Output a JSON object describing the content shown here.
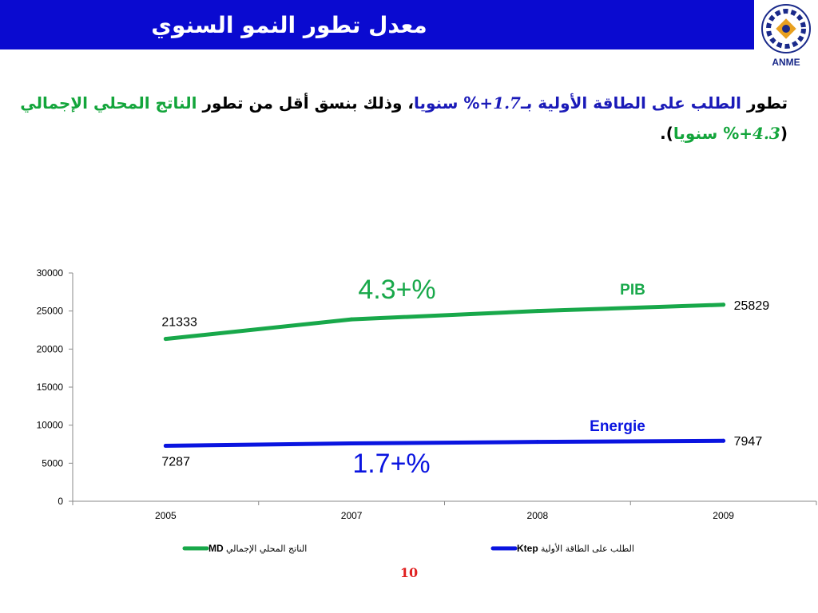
{
  "slide": {
    "title": "معدل تطور النمو السنوي",
    "logo_text": "ANME",
    "logo_arc_text": "الوكالة الوطنية للتحكم في الطاقة",
    "page_number": "10"
  },
  "description": {
    "p1": "تطور ",
    "p2": "الطلب على الطاقة الأولية بـ",
    "p3": "+1.7",
    "p4": "% سنويا",
    "p5": "، وذلك بنسق أقل من تطور ",
    "p6": "الناتج المحلي الإجمالي ",
    "p7": "(",
    "p8": "+4.3",
    "p9": "% سنويا",
    "p10": ")."
  },
  "chart_data": {
    "type": "line",
    "categories": [
      "2005",
      "2007",
      "2008",
      "2009"
    ],
    "ylim": [
      0,
      30000
    ],
    "yticks": [
      "0",
      "5000",
      "10000",
      "15000",
      "20000",
      "25000",
      "30000"
    ],
    "grid": false,
    "legend_position": "bottom",
    "series": [
      {
        "name": "الناتج المحلي الإجمالي MD",
        "legend_plain": "الناتج المحلي الإجمالي",
        "legend_bold": "MD",
        "values": [
          21333,
          23900,
          25000,
          25829
        ],
        "color": "#18a84a",
        "tag": "PIB",
        "rate": "4.3+%",
        "start_label": "21333",
        "end_label": "25829"
      },
      {
        "name": "الطلب على الطاقة الأولية Ktep",
        "legend_plain": "الطلب على الطاقة الأولية",
        "legend_bold": "Ktep",
        "values": [
          7287,
          7600,
          7800,
          7947
        ],
        "color": "#0a14e0",
        "tag": "Energie",
        "rate": "1.7+%",
        "start_label": "7287",
        "end_label": "7947"
      }
    ]
  }
}
